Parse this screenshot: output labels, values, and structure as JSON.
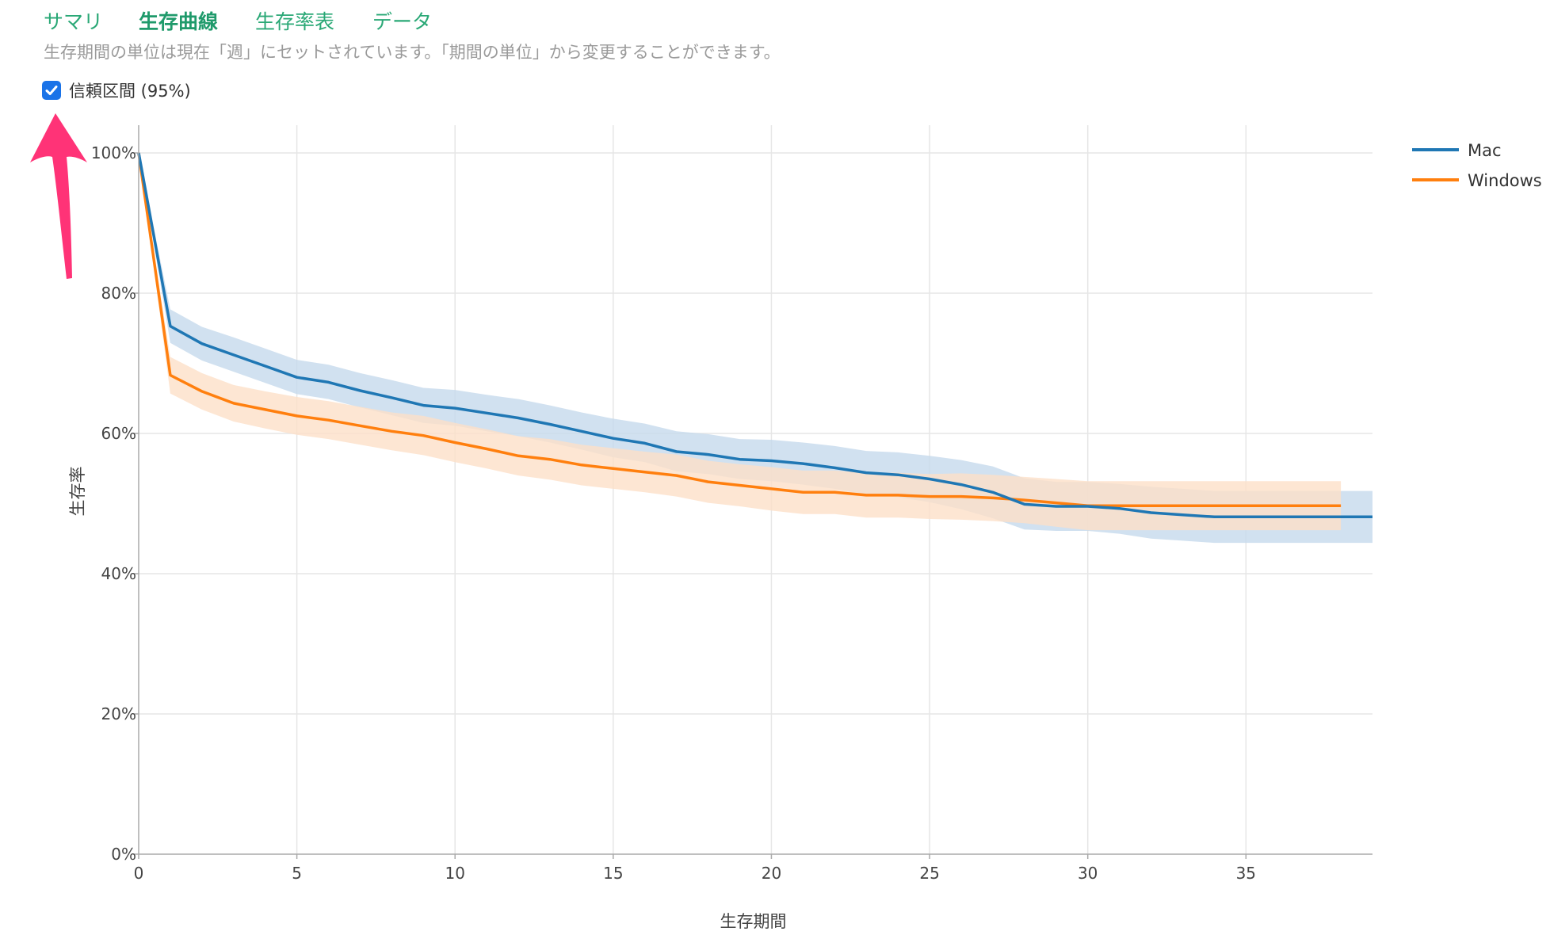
{
  "tabs": [
    {
      "label": "サマリ",
      "active": false
    },
    {
      "label": "生存曲線",
      "active": true
    },
    {
      "label": "生存率表",
      "active": false
    },
    {
      "label": "データ",
      "active": false
    }
  ],
  "notice": "生存期間の単位は現在「週」にセットされています。「期間の単位」から変更することができます。",
  "ci_toggle": {
    "label": "信頼区間 (95%)",
    "checked": true
  },
  "annotation": {
    "icon": "pink-arrow-up-icon",
    "color": "#ff3377"
  },
  "chart_data": {
    "type": "line",
    "title": "",
    "xlabel": "生存期間",
    "ylabel": "生存率",
    "xlim": [
      0,
      39
    ],
    "ylim": [
      0,
      1.0
    ],
    "x_ticks": [
      0,
      5,
      10,
      15,
      20,
      25,
      30,
      35
    ],
    "x_tick_labels": [
      "0",
      "5",
      "10",
      "15",
      "20",
      "25",
      "30",
      "35"
    ],
    "y_ticks": [
      0,
      0.2,
      0.4,
      0.6,
      0.8,
      1.0
    ],
    "y_tick_labels": [
      "0%",
      "20%",
      "40%",
      "60%",
      "80%",
      "100%"
    ],
    "grid": true,
    "legend_position": "top-right",
    "series": [
      {
        "name": "Mac",
        "color": "#1f77b4",
        "band_color": "#c6d9ec",
        "x": [
          0,
          1,
          2,
          3,
          4,
          5,
          6,
          7,
          8,
          9,
          10,
          11,
          12,
          13,
          14,
          15,
          16,
          17,
          18,
          19,
          20,
          21,
          22,
          23,
          24,
          25,
          26,
          27,
          28,
          29,
          30,
          31,
          32,
          33,
          34,
          35,
          36,
          37,
          38,
          39
        ],
        "y": [
          1.0,
          0.753,
          0.728,
          0.712,
          0.696,
          0.68,
          0.673,
          0.661,
          0.651,
          0.64,
          0.636,
          0.629,
          0.622,
          0.613,
          0.603,
          0.593,
          0.586,
          0.574,
          0.57,
          0.563,
          0.561,
          0.557,
          0.551,
          0.544,
          0.541,
          0.535,
          0.527,
          0.516,
          0.499,
          0.496,
          0.496,
          0.493,
          0.487,
          0.484,
          0.481,
          0.481,
          0.481,
          0.481,
          0.481,
          0.481
        ],
        "lower": [
          1.0,
          0.729,
          0.704,
          0.688,
          0.672,
          0.656,
          0.649,
          0.637,
          0.626,
          0.615,
          0.611,
          0.603,
          0.596,
          0.587,
          0.577,
          0.566,
          0.559,
          0.546,
          0.542,
          0.535,
          0.532,
          0.527,
          0.521,
          0.513,
          0.509,
          0.502,
          0.492,
          0.479,
          0.463,
          0.461,
          0.461,
          0.457,
          0.45,
          0.447,
          0.444,
          0.444,
          0.444,
          0.444,
          0.444,
          0.444
        ],
        "upper": [
          1.0,
          0.777,
          0.752,
          0.737,
          0.721,
          0.705,
          0.698,
          0.686,
          0.676,
          0.665,
          0.662,
          0.655,
          0.649,
          0.64,
          0.63,
          0.621,
          0.614,
          0.603,
          0.599,
          0.592,
          0.591,
          0.587,
          0.582,
          0.575,
          0.573,
          0.568,
          0.562,
          0.553,
          0.536,
          0.531,
          0.531,
          0.528,
          0.524,
          0.521,
          0.518,
          0.518,
          0.518,
          0.518,
          0.518,
          0.518
        ]
      },
      {
        "name": "Windows",
        "color": "#ff7f0e",
        "band_color": "#fde0c8",
        "x": [
          0,
          1,
          2,
          3,
          4,
          5,
          6,
          7,
          8,
          9,
          10,
          11,
          12,
          13,
          14,
          15,
          16,
          17,
          18,
          19,
          20,
          21,
          22,
          23,
          24,
          25,
          26,
          27,
          28,
          29,
          30,
          31,
          32,
          33,
          34,
          35,
          36,
          37,
          38
        ],
        "y": [
          1.0,
          0.683,
          0.66,
          0.643,
          0.634,
          0.625,
          0.619,
          0.611,
          0.603,
          0.597,
          0.587,
          0.578,
          0.568,
          0.563,
          0.555,
          0.55,
          0.545,
          0.54,
          0.531,
          0.526,
          0.521,
          0.516,
          0.516,
          0.512,
          0.512,
          0.51,
          0.51,
          0.508,
          0.505,
          0.501,
          0.497,
          0.497,
          0.497,
          0.497,
          0.497,
          0.497,
          0.497,
          0.497,
          0.497
        ],
        "lower": [
          1.0,
          0.657,
          0.634,
          0.617,
          0.607,
          0.598,
          0.592,
          0.584,
          0.576,
          0.569,
          0.559,
          0.55,
          0.54,
          0.534,
          0.526,
          0.521,
          0.516,
          0.51,
          0.501,
          0.496,
          0.49,
          0.485,
          0.485,
          0.48,
          0.48,
          0.478,
          0.477,
          0.475,
          0.472,
          0.467,
          0.462,
          0.462,
          0.462,
          0.462,
          0.462,
          0.462,
          0.462,
          0.462,
          0.462
        ],
        "upper": [
          1.0,
          0.709,
          0.686,
          0.669,
          0.66,
          0.652,
          0.646,
          0.638,
          0.63,
          0.625,
          0.615,
          0.606,
          0.596,
          0.592,
          0.584,
          0.579,
          0.574,
          0.57,
          0.561,
          0.556,
          0.552,
          0.547,
          0.547,
          0.544,
          0.544,
          0.542,
          0.543,
          0.541,
          0.538,
          0.535,
          0.532,
          0.532,
          0.532,
          0.532,
          0.532,
          0.532,
          0.532,
          0.532,
          0.532
        ]
      }
    ]
  }
}
